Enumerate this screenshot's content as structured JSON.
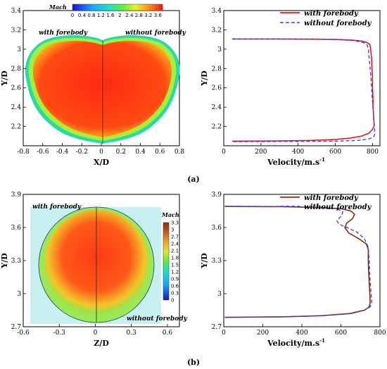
{
  "chart_data": [
    {
      "panel": "a-contour",
      "type": "heatmap",
      "xlabel": "X/D",
      "ylabel": "Y/D",
      "xlim": [
        -0.8,
        0.8
      ],
      "ylim": [
        2.0,
        3.4
      ],
      "xticks": [
        "-0.8",
        "-0.6",
        "-0.4",
        "-0.2",
        "0",
        "0.2",
        "0.4",
        "0.6",
        "0.8"
      ],
      "yticks": [
        "2.2",
        "2.4",
        "2.6",
        "2.8",
        "3",
        "3.2",
        "3.4"
      ],
      "colorbar": {
        "title": "Mach",
        "orientation": "horizontal",
        "ticks": [
          "0",
          "0.4",
          "0.8",
          "1.2",
          "1.6",
          "2",
          "2.4",
          "2.8",
          "3.2",
          "3.6"
        ],
        "range": [
          0,
          3.8
        ]
      },
      "annotations": [
        "with forebody",
        "without forebody"
      ]
    },
    {
      "panel": "a-profile",
      "type": "line",
      "xlabel": "Velocity/m.s",
      "xlabel_sup": "-1",
      "ylabel": "Y/D",
      "xlim": [
        0,
        840
      ],
      "ylim": [
        2.0,
        3.4
      ],
      "xticks": [
        "0",
        "200",
        "400",
        "600",
        "800"
      ],
      "yticks": [
        "2.2",
        "2.4",
        "2.6",
        "2.8",
        "3",
        "3.2",
        "3.4"
      ],
      "legend": "top-right",
      "series": [
        {
          "name": "with forebody",
          "color": "#e41a1c",
          "dash": "solid",
          "points": [
            [
              45,
              3.105
            ],
            [
              300,
              3.105
            ],
            [
              500,
              3.103
            ],
            [
              600,
              3.1
            ],
            [
              680,
              3.095
            ],
            [
              740,
              3.085
            ],
            [
              770,
              3.07
            ],
            [
              785,
              3.05
            ],
            [
              790,
              3.0
            ],
            [
              795,
              2.9
            ],
            [
              797,
              2.8
            ],
            [
              800,
              2.7
            ],
            [
              800,
              2.6
            ],
            [
              802,
              2.5
            ],
            [
              803,
              2.4
            ],
            [
              806,
              2.3
            ],
            [
              808,
              2.25
            ],
            [
              808,
              2.2
            ],
            [
              800,
              2.17
            ],
            [
              780,
              2.13
            ],
            [
              740,
              2.1
            ],
            [
              680,
              2.08
            ],
            [
              600,
              2.065
            ],
            [
              450,
              2.055
            ],
            [
              300,
              2.05
            ],
            [
              45,
              2.048
            ]
          ]
        },
        {
          "name": "without forebody",
          "color": "#3b3bd9",
          "dash": "dashed",
          "points": [
            [
              45,
              3.107
            ],
            [
              300,
              3.107
            ],
            [
              500,
              3.105
            ],
            [
              600,
              3.1
            ],
            [
              690,
              3.09
            ],
            [
              740,
              3.075
            ],
            [
              760,
              3.06
            ],
            [
              772,
              3.04
            ],
            [
              778,
              3.0
            ],
            [
              782,
              2.9
            ],
            [
              787,
              2.8
            ],
            [
              792,
              2.7
            ],
            [
              795,
              2.6
            ],
            [
              798,
              2.5
            ],
            [
              802,
              2.4
            ],
            [
              806,
              2.3
            ],
            [
              810,
              2.2
            ],
            [
              812,
              2.12
            ],
            [
              805,
              2.09
            ],
            [
              780,
              2.07
            ],
            [
              720,
              2.055
            ],
            [
              600,
              2.048
            ],
            [
              400,
              2.045
            ],
            [
              45,
              2.043
            ]
          ]
        }
      ]
    },
    {
      "panel": "b-contour",
      "type": "heatmap",
      "xlabel": "Z/D",
      "ylabel": "Y/D",
      "xlim": [
        -0.6,
        0.7
      ],
      "ylim": [
        2.7,
        3.9
      ],
      "xticks": [
        "-0.6",
        "-0.3",
        "0",
        "0.3",
        "0.6"
      ],
      "yticks": [
        "2.7",
        "3",
        "3.3",
        "3.6",
        "3.9"
      ],
      "colorbar": {
        "title": "Mach",
        "orientation": "vertical",
        "ticks": [
          "0",
          "0.3",
          "0.6",
          "0.9",
          "1.2",
          "1.5",
          "1.8",
          "2.1",
          "2.4",
          "2.7",
          "3",
          "3.3"
        ],
        "range": [
          0,
          3.3
        ]
      },
      "annotations": [
        "with forebody",
        "without forebody"
      ]
    },
    {
      "panel": "b-profile",
      "type": "line",
      "xlabel": "Velocity/m.s",
      "xlabel_sup": "-1",
      "ylabel": "Y/D",
      "xlim": [
        0,
        800
      ],
      "ylim": [
        2.7,
        3.9
      ],
      "xticks": [
        "0",
        "200",
        "400",
        "600",
        "800"
      ],
      "yticks": [
        "2.7",
        "3",
        "3.3",
        "3.6",
        "3.9"
      ],
      "legend": "top-right",
      "series": [
        {
          "name": "with forebody",
          "color": "#8b2a0e",
          "dash": "solid",
          "points": [
            [
              5,
              3.79
            ],
            [
              300,
              3.788
            ],
            [
              500,
              3.78
            ],
            [
              600,
              3.77
            ],
            [
              650,
              3.75
            ],
            [
              670,
              3.72
            ],
            [
              660,
              3.68
            ],
            [
              630,
              3.64
            ],
            [
              620,
              3.6
            ],
            [
              640,
              3.55
            ],
            [
              690,
              3.5
            ],
            [
              730,
              3.45
            ],
            [
              740,
              3.4
            ],
            [
              740,
              3.3
            ],
            [
              742,
              3.2
            ],
            [
              745,
              3.1
            ],
            [
              748,
              3.0
            ],
            [
              750,
              2.92
            ],
            [
              745,
              2.88
            ],
            [
              720,
              2.85
            ],
            [
              650,
              2.82
            ],
            [
              500,
              2.8
            ],
            [
              300,
              2.79
            ],
            [
              5,
              2.785
            ]
          ]
        },
        {
          "name": "without forebody",
          "color": "#3b3bd9",
          "dash": "dashed",
          "points": [
            [
              5,
              3.792
            ],
            [
              300,
              3.79
            ],
            [
              500,
              3.784
            ],
            [
              580,
              3.77
            ],
            [
              610,
              3.74
            ],
            [
              600,
              3.7
            ],
            [
              580,
              3.66
            ],
            [
              590,
              3.63
            ],
            [
              630,
              3.6
            ],
            [
              680,
              3.56
            ],
            [
              720,
              3.5
            ],
            [
              740,
              3.42
            ],
            [
              745,
              3.3
            ],
            [
              747,
              3.2
            ],
            [
              750,
              3.1
            ],
            [
              755,
              3.0
            ],
            [
              758,
              2.92
            ],
            [
              750,
              2.88
            ],
            [
              720,
              2.85
            ],
            [
              640,
              2.82
            ],
            [
              500,
              2.8
            ],
            [
              300,
              2.79
            ],
            [
              5,
              2.786
            ]
          ]
        }
      ]
    }
  ],
  "labels": {
    "panel_a": "(a)",
    "panel_b": "(b)"
  }
}
